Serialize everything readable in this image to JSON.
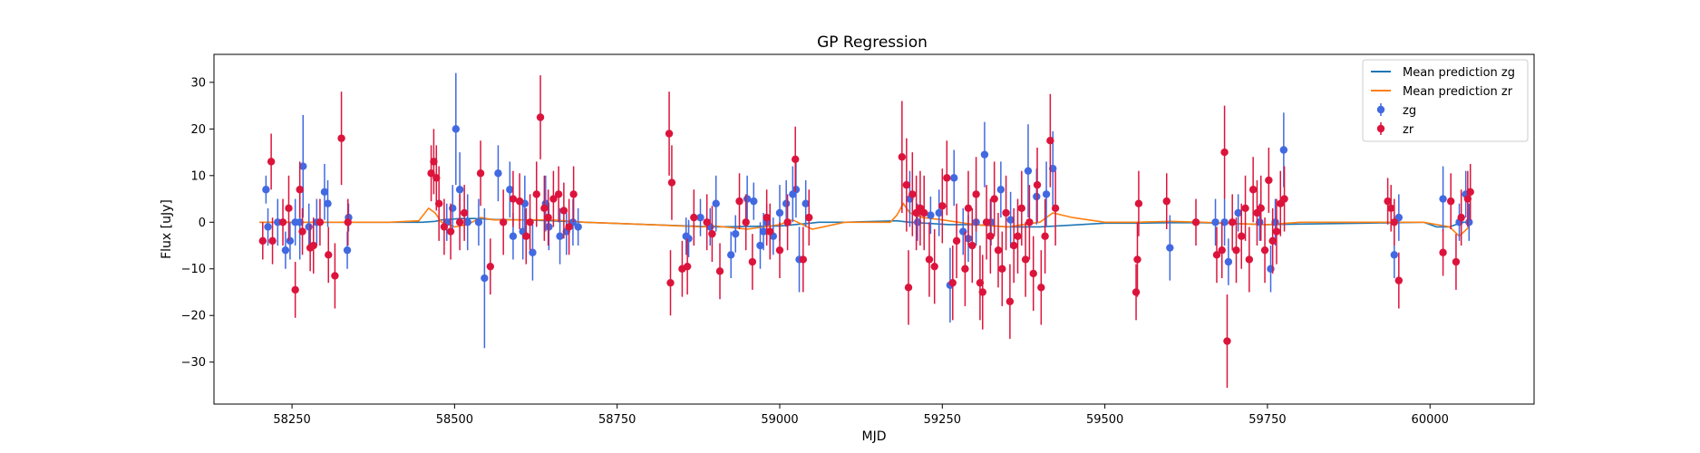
{
  "chart_data": {
    "type": "scatter",
    "title": "GP Regression",
    "xlabel": "MJD",
    "ylabel": "Flux [uJy]",
    "xlim": [
      58130,
      60160
    ],
    "ylim": [
      -39,
      36
    ],
    "x_ticks": [
      58250,
      58500,
      58750,
      59000,
      59250,
      59500,
      59750,
      60000
    ],
    "y_ticks": [
      -30,
      -20,
      -10,
      0,
      10,
      20,
      30
    ],
    "grid": false,
    "legend_position": "top-right",
    "legend": [
      {
        "label": "Mean prediction zg",
        "kind": "line",
        "color": "#1f77b4"
      },
      {
        "label": "Mean prediction zr",
        "kind": "line",
        "color": "#ff7f0e"
      },
      {
        "label": "zg",
        "kind": "errorbar",
        "color": "#4169e1"
      },
      {
        "label": "zr",
        "kind": "errorbar",
        "color": "#dc143c"
      }
    ],
    "series": [
      {
        "name": "Mean prediction zg",
        "kind": "line",
        "color": "#1f77b4",
        "x": [
          58200,
          58300,
          58400,
          58450,
          58470,
          58480,
          58490,
          58510,
          58530,
          58560,
          58600,
          58650,
          58700,
          58800,
          58900,
          59000,
          59040,
          59060,
          59100,
          59180,
          59200,
          59260,
          59300,
          59350,
          59400,
          59450,
          59500,
          59550,
          59600,
          59650,
          59700,
          59750,
          59800,
          59900,
          59990,
          60010,
          60030,
          60050,
          60060
        ],
        "y": [
          0,
          0,
          0,
          0,
          0.2,
          0.5,
          0.6,
          0.8,
          0.8,
          0.6,
          0.5,
          0.3,
          0,
          -0.5,
          -1,
          -0.8,
          -0.3,
          0,
          0,
          0.3,
          0,
          -0.5,
          -0.5,
          -1,
          -1,
          -0.6,
          -0.2,
          -0.2,
          -0.1,
          -0.1,
          -0.3,
          -0.5,
          -0.4,
          -0.2,
          0,
          -1,
          -1,
          0,
          0
        ]
      },
      {
        "name": "Mean prediction zr",
        "kind": "line",
        "color": "#ff7f0e",
        "x": [
          58200,
          58300,
          58400,
          58445,
          58460,
          58470,
          58480,
          58500,
          58520,
          58540,
          58560,
          58600,
          58650,
          58700,
          58800,
          58880,
          58900,
          58950,
          59000,
          59020,
          59050,
          59100,
          59170,
          59180,
          59190,
          59200,
          59220,
          59250,
          59300,
          59350,
          59400,
          59420,
          59450,
          59500,
          59550,
          59600,
          59650,
          59700,
          59750,
          59800,
          59900,
          59990,
          60010,
          60030,
          60045,
          60060
        ],
        "y": [
          0,
          0,
          0,
          0.3,
          3,
          2,
          0,
          -1,
          -0.5,
          1,
          0.5,
          0.5,
          0.5,
          0,
          -0.5,
          -1,
          -0.8,
          -1.5,
          -0.5,
          0.5,
          -1.5,
          0,
          0,
          1.5,
          4,
          2,
          1,
          0.5,
          -0.5,
          -1,
          0,
          2,
          1,
          0,
          0,
          0.2,
          0,
          -0.3,
          -0.5,
          0,
          0,
          0,
          -0.5,
          -1,
          -3,
          -1
        ]
      },
      {
        "name": "zg",
        "kind": "errorbar",
        "color": "#4169e1",
        "x": [
          58210,
          58213,
          58228,
          58240,
          58247,
          58255,
          58262,
          58267,
          58276,
          58288,
          58300,
          58305,
          58335,
          58337,
          58488,
          58497,
          58502,
          58508,
          58520,
          58537,
          58546,
          58567,
          58585,
          58590,
          58605,
          58608,
          58620,
          58640,
          58645,
          58662,
          58672,
          58682,
          58690,
          58856,
          58860,
          58878,
          58893,
          58902,
          58925,
          58932,
          58950,
          58960,
          58970,
          58975,
          58980,
          58990,
          59000,
          59010,
          59020,
          59025,
          59030,
          59040,
          59200,
          59212,
          59232,
          59245,
          59262,
          59268,
          59282,
          59290,
          59302,
          59315,
          59325,
          59340,
          59355,
          59382,
          59395,
          59410,
          59420,
          59600,
          59670,
          59684,
          59690,
          59705,
          59738,
          59755,
          59762,
          59775,
          59945,
          59952,
          60020,
          60045,
          60055,
          60060
        ],
        "y": [
          7,
          -1,
          0,
          -6,
          -4,
          0,
          0,
          12,
          -1,
          0,
          6.5,
          4,
          -6,
          1,
          0,
          3,
          20,
          7,
          0,
          0,
          -12,
          10.5,
          7,
          -3,
          -2,
          4,
          -6.5,
          4,
          -1,
          -3,
          -2,
          0,
          -1,
          -3,
          -3.5,
          1,
          -1,
          4,
          -7,
          -2.5,
          5,
          4.5,
          -5,
          -2,
          0,
          -3,
          2,
          4,
          6,
          7,
          -8,
          4,
          5,
          0,
          1.5,
          2,
          -13.5,
          9.5,
          -2,
          -3.5,
          0,
          14.5,
          0,
          7,
          0.5,
          11,
          5.5,
          6,
          11.5,
          -5.5,
          0,
          0,
          -8.5,
          2,
          0,
          -10,
          0,
          15.5,
          -7,
          1,
          5,
          0,
          6,
          0
        ],
        "err": [
          3,
          4,
          5,
          4,
          4,
          5,
          8,
          11,
          5,
          5,
          6,
          5,
          4,
          3,
          4,
          5,
          12,
          8,
          6,
          5,
          15,
          6,
          6,
          5,
          6,
          6,
          6,
          6,
          5,
          6,
          5,
          5,
          4,
          4,
          4,
          4,
          4,
          6,
          5,
          4,
          5,
          4,
          5,
          4,
          4,
          4,
          6,
          5,
          6,
          6,
          7,
          5,
          6,
          4,
          4,
          5,
          8,
          6,
          5,
          5,
          5,
          7,
          5,
          6,
          6,
          10,
          6,
          7,
          8,
          7,
          5,
          5,
          5,
          4,
          4,
          5,
          5,
          8,
          5,
          5,
          7,
          4,
          5,
          4
        ]
      },
      {
        "name": "zr",
        "kind": "errorbar",
        "color": "#dc143c",
        "x": [
          58205,
          58218,
          58220,
          58236,
          58245,
          58255,
          58262,
          58266,
          58278,
          58283,
          58293,
          58306,
          58316,
          58326,
          58336,
          58464,
          58468,
          58472,
          58476,
          58484,
          58494,
          58508,
          58515,
          58540,
          58555,
          58575,
          58590,
          58600,
          58610,
          58616,
          58626,
          58632,
          58638,
          58644,
          58652,
          58660,
          58668,
          58676,
          58683,
          58830,
          58832,
          58834,
          58850,
          58858,
          58868,
          58888,
          58896,
          58908,
          58938,
          58948,
          58958,
          58980,
          58985,
          59000,
          59012,
          59024,
          59036,
          59045,
          59188,
          59195,
          59198,
          59204,
          59210,
          59216,
          59222,
          59230,
          59238,
          59250,
          59257,
          59266,
          59272,
          59285,
          59290,
          59296,
          59302,
          59308,
          59312,
          59318,
          59324,
          59330,
          59336,
          59342,
          59348,
          59354,
          59360,
          59366,
          59372,
          59378,
          59384,
          59390,
          59396,
          59402,
          59408,
          59416,
          59424,
          59548,
          59550,
          59552,
          59595,
          59640,
          59672,
          59680,
          59684,
          59688,
          59696,
          59702,
          59710,
          59716,
          59722,
          59728,
          59734,
          59740,
          59746,
          59752,
          59758,
          59764,
          59770,
          59776,
          59935,
          59940,
          59945,
          59952,
          60020,
          60032,
          60040,
          60048,
          60058,
          60062
        ],
        "y": [
          -4,
          13,
          -4,
          0,
          3,
          -14.5,
          7,
          -2,
          -5.5,
          -5,
          0,
          -7,
          -11.5,
          18,
          0,
          10.5,
          13,
          9.5,
          4,
          -1,
          -2,
          0,
          2,
          10.5,
          -9.5,
          0,
          5,
          4.5,
          -3,
          0,
          6,
          22.5,
          3,
          1,
          5,
          6,
          2.5,
          -1,
          6,
          19,
          -13,
          8.5,
          -10,
          -9.5,
          1,
          0,
          -2.5,
          -10.5,
          4.5,
          0,
          -8.5,
          1,
          -2,
          -6,
          0,
          13.5,
          -8,
          1,
          14,
          8,
          -14,
          6,
          2,
          3,
          2,
          -8,
          -9.5,
          3.5,
          9.5,
          -13,
          -4,
          -10,
          3,
          -5,
          6,
          -13,
          -15,
          0,
          -3,
          5,
          -6,
          -10,
          2,
          -17,
          -5,
          -3,
          3,
          -8,
          0,
          -11,
          8,
          -14,
          -3,
          17.5,
          3,
          -15,
          -8,
          4,
          4.5,
          0,
          -7,
          -6,
          15,
          -25.5,
          0,
          -6,
          -3,
          3,
          -8,
          7,
          2,
          3,
          -6,
          9,
          -4,
          -2,
          4,
          5,
          4.5,
          3,
          0,
          -12.5,
          -6.5,
          4.5,
          -8.5,
          1,
          5,
          6.5
        ],
        "err": [
          4,
          6,
          5,
          5,
          7,
          6,
          6,
          5,
          5,
          6,
          5,
          6,
          7,
          10,
          5,
          6,
          7,
          7,
          8,
          6,
          6,
          6,
          6,
          7,
          6,
          7,
          6,
          6,
          6,
          6,
          7,
          9,
          7,
          6,
          6,
          6,
          6,
          6,
          6,
          9,
          7,
          8,
          6,
          6,
          6,
          6,
          6,
          6,
          6,
          6,
          6,
          6,
          6,
          6,
          6,
          7,
          7,
          6,
          12,
          10,
          8,
          9,
          8,
          8,
          8,
          8,
          8,
          8,
          8,
          8,
          8,
          8,
          8,
          8,
          8,
          8,
          8,
          8,
          8,
          8,
          8,
          8,
          8,
          8,
          8,
          8,
          8,
          8,
          8,
          8,
          8,
          8,
          8,
          10,
          8,
          6,
          8,
          7,
          6,
          5,
          6,
          6,
          10,
          10,
          6,
          7,
          7,
          7,
          7,
          7,
          7,
          7,
          7,
          7,
          7,
          7,
          7,
          7,
          5,
          5,
          5,
          6,
          5,
          6,
          6,
          6,
          6,
          6
        ]
      }
    ]
  }
}
